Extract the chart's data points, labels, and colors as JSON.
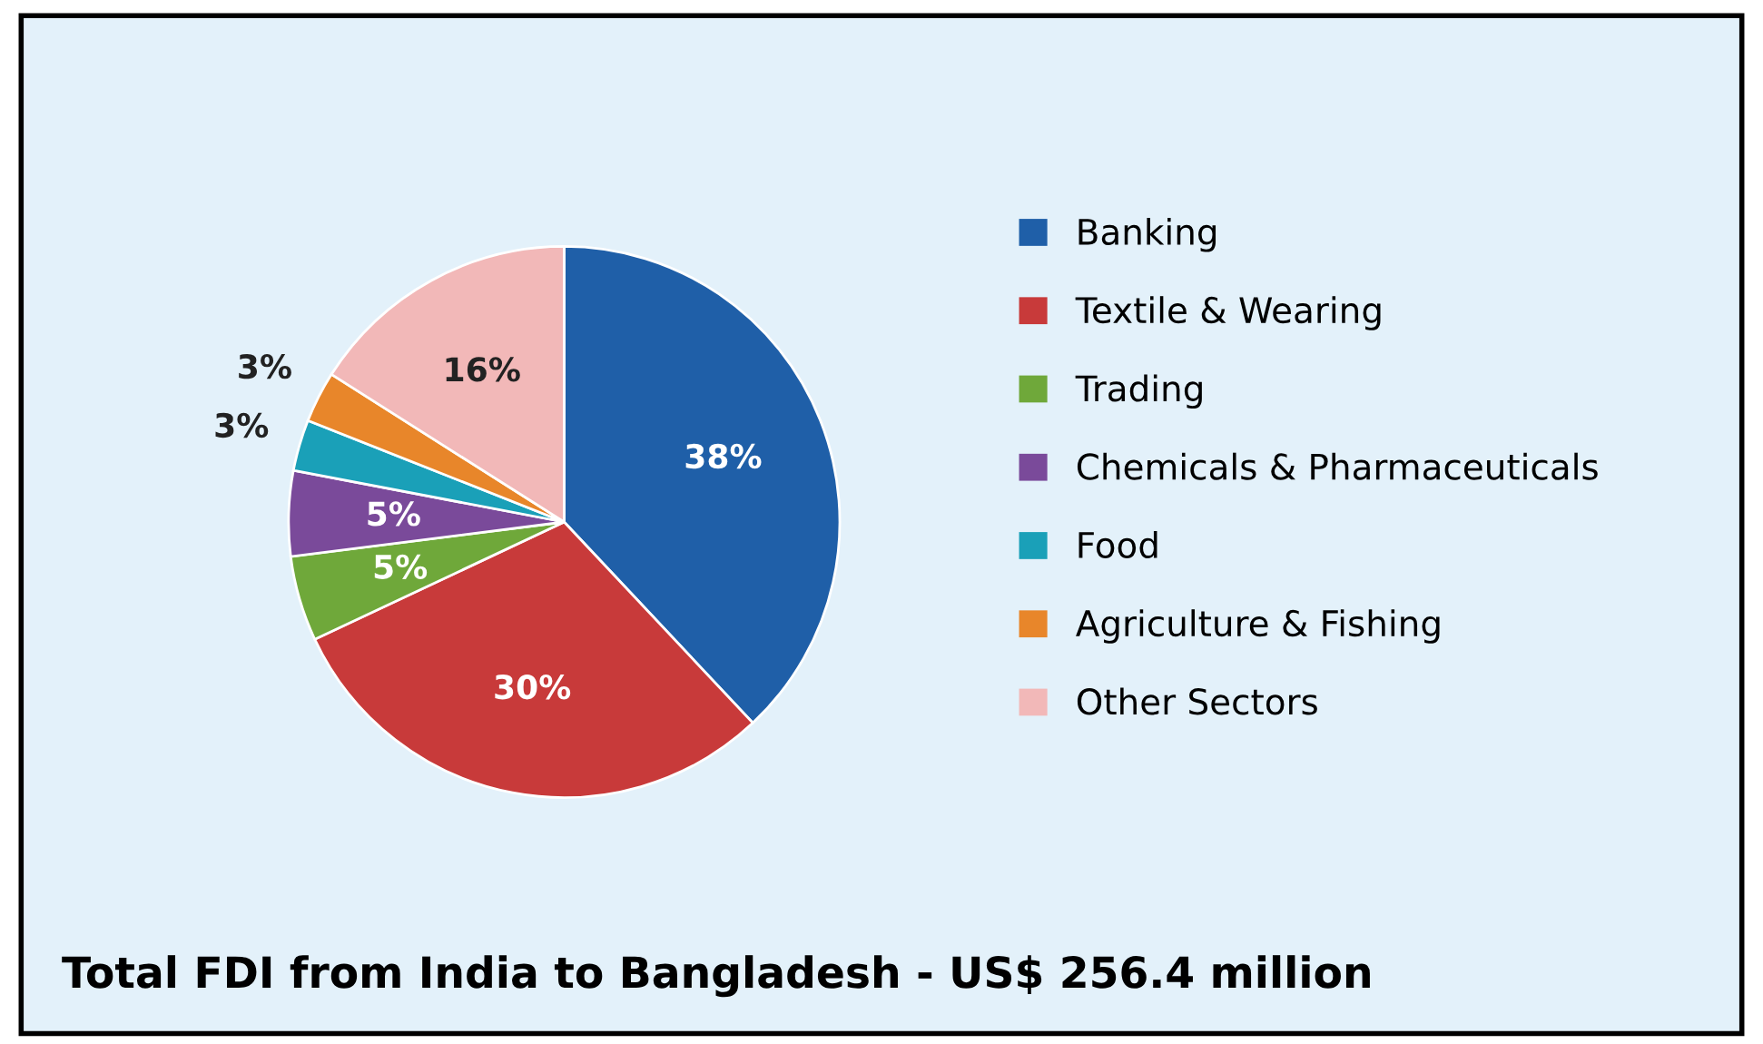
{
  "chart_data": {
    "type": "pie",
    "title": "Total FDI from India to Bangladesh - US$ 256.4 million",
    "categories": [
      "Banking",
      "Textile & Wearing",
      "Trading",
      "Chemicals & Pharmaceuticals",
      "Food",
      "Agriculture & Fishing",
      "Other Sectors"
    ],
    "values": [
      38,
      30,
      5,
      5,
      3,
      3,
      16
    ],
    "colors": [
      "#1f5fa8",
      "#c83a3a",
      "#6fa83a",
      "#7a4a9a",
      "#1aa0b8",
      "#e8862a",
      "#f2b8b8"
    ],
    "value_labels": [
      "38%",
      "30%",
      "5%",
      "5%",
      "3%",
      "3%",
      "16%"
    ],
    "legend": "right"
  }
}
